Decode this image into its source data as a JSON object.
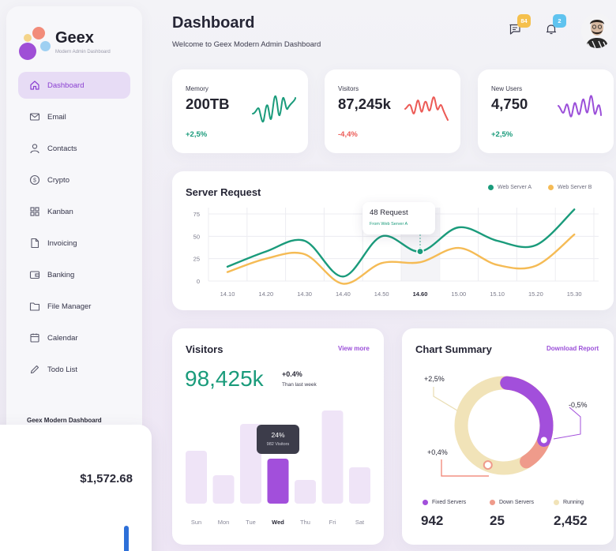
{
  "app": {
    "name": "Geex",
    "tagline": "Modern Admin Dashboard"
  },
  "sidebar": {
    "items": [
      {
        "label": "Dashboard",
        "icon": "home-icon",
        "active": true
      },
      {
        "label": "Email",
        "icon": "mail-icon"
      },
      {
        "label": "Contacts",
        "icon": "user-icon"
      },
      {
        "label": "Crypto",
        "icon": "dollar-coin-icon"
      },
      {
        "label": "Kanban",
        "icon": "grid-icon"
      },
      {
        "label": "Invoicing",
        "icon": "document-icon"
      },
      {
        "label": "Banking",
        "icon": "wallet-icon"
      },
      {
        "label": "File Manager",
        "icon": "folder-icon"
      },
      {
        "label": "Calendar",
        "icon": "calendar-icon"
      },
      {
        "label": "Todo List",
        "icon": "pencil-icon"
      }
    ],
    "footer": "Geex Modern Dashboard"
  },
  "balance": {
    "amount": "$1,572.68"
  },
  "header": {
    "title": "Dashboard",
    "subtitle": "Welcome to Geex Modern Admin Dashboard",
    "messages_badge": "84",
    "notifications_badge": "2"
  },
  "stats": [
    {
      "label": "Memory",
      "value": "200TB",
      "change": "+2,5%",
      "color": "#1a9b7b"
    },
    {
      "label": "Visitors",
      "value": "87,245k",
      "change": "-4,4%",
      "color": "#ec5b56"
    },
    {
      "label": "New Users",
      "value": "4,750",
      "change": "+2,5%",
      "color": "#9b4fd9"
    }
  ],
  "server_request": {
    "title": "Server Request",
    "tooltip_value": "48 Request",
    "tooltip_sub": "From Web Server A",
    "chart_data": {
      "type": "line",
      "x": [
        "14.10",
        "14.20",
        "14.30",
        "14.40",
        "14.50",
        "14.60",
        "15.00",
        "15.10",
        "15.20",
        "15.30"
      ],
      "yticks": [
        "75",
        "50",
        "25",
        "0"
      ],
      "ylim": [
        0,
        75
      ],
      "highlight_category": "14.60",
      "series": [
        {
          "name": "Web Server A",
          "color": "#1a9b7b",
          "points": [
            [
              0,
              16
            ],
            [
              1,
              33
            ],
            [
              2,
              45
            ],
            [
              3,
              5
            ],
            [
              4,
              50
            ],
            [
              5,
              33
            ],
            [
              6,
              60
            ],
            [
              7,
              45
            ],
            [
              8,
              40
            ],
            [
              9,
              80
            ]
          ]
        },
        {
          "name": "Web Server B",
          "color": "#f5bb55",
          "points": [
            [
              0,
              10
            ],
            [
              1,
              25
            ],
            [
              2,
              30
            ],
            [
              3,
              -3
            ],
            [
              4,
              20
            ],
            [
              5,
              21
            ],
            [
              6,
              37
            ],
            [
              7,
              18
            ],
            [
              8,
              17
            ],
            [
              9,
              52
            ]
          ]
        }
      ]
    }
  },
  "visitors": {
    "title": "Visitors",
    "link": "View more",
    "total": "98,425k",
    "change": "+0.4%",
    "change_sub": "Than last week",
    "tooltip_pct": "24%",
    "tooltip_sub": "982 Visitors",
    "chart_data": {
      "type": "bar",
      "categories": [
        "Sun",
        "Mon",
        "Tue",
        "Wed",
        "Thu",
        "Fri",
        "Sat"
      ],
      "values": [
        67,
        36,
        101,
        57,
        30,
        118,
        46
      ],
      "highlight": "Wed",
      "colors": {
        "bar": "#efe4f7",
        "highlight": "#a24fdb"
      }
    }
  },
  "summary": {
    "title": "Chart Summary",
    "link": "Download Report",
    "annotations": [
      "+2,5%",
      "-0,5%",
      "+0,4%"
    ],
    "chart_data": {
      "type": "pie",
      "labels": [
        "Fixed Servers",
        "Down Servers",
        "Running"
      ],
      "values": [
        942,
        25,
        2452
      ],
      "colors": [
        "#a24fdb",
        "#ef9b8b",
        "#f1e3b8"
      ],
      "display_values": [
        "942",
        "25",
        "2,452"
      ]
    }
  }
}
